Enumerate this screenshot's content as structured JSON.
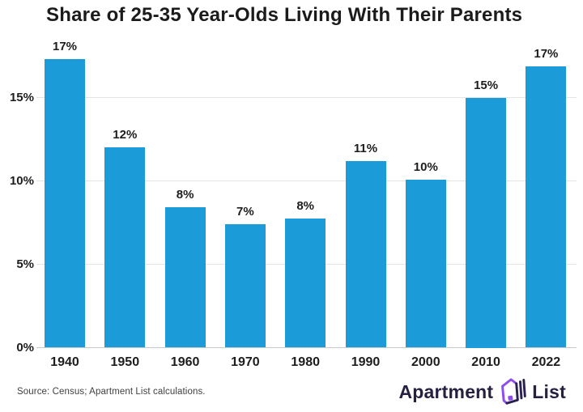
{
  "title": "Share of 25-35 Year-Olds Living With Their Parents",
  "source_note": "Source: Census; Apartment List calculations.",
  "logo": {
    "word1": "Apartment",
    "word2": "List",
    "icon": "apartment-list-house-icon"
  },
  "colors": {
    "bar": "#1b9cd8",
    "grid": "#e4e4e4",
    "axis_line": "#c9c9c9",
    "text": "#1d1d1d",
    "title_text": "#1b1b1b",
    "source_text": "#3f3f3f",
    "logo_text": "#262140",
    "logo_purple": "#8d4bf0",
    "logo_dark": "#2b2150",
    "background": "#ffffff"
  },
  "chart_data": {
    "type": "bar",
    "title": "Share of 25-35 Year-Olds Living With Their Parents",
    "categories": [
      "1940",
      "1950",
      "1960",
      "1970",
      "1980",
      "1990",
      "2000",
      "2010",
      "2022"
    ],
    "values": [
      17,
      12,
      8,
      7,
      8,
      11,
      10,
      15,
      17
    ],
    "value_labels": [
      "17%",
      "12%",
      "8%",
      "7%",
      "8%",
      "11%",
      "10%",
      "15%",
      "17%"
    ],
    "render_values": [
      17.3,
      12.0,
      8.4,
      7.4,
      7.75,
      11.2,
      10.05,
      15.0,
      16.85
    ],
    "xlabel": "",
    "ylabel": "",
    "y_ticks": [
      {
        "label": "0%",
        "value": 0
      },
      {
        "label": "5%",
        "value": 5
      },
      {
        "label": "10%",
        "value": 10
      },
      {
        "label": "15%",
        "value": 15
      }
    ],
    "ylim": [
      0,
      18.6
    ],
    "grid": true,
    "legend": false
  }
}
